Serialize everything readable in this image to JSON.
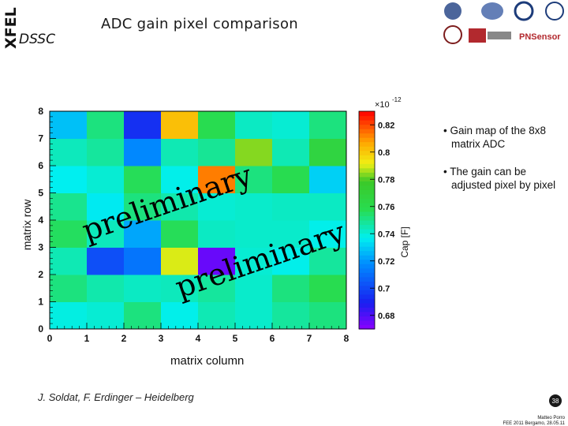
{
  "header": {
    "logo_text": "XFEL",
    "dssc": "DSSC",
    "title": "ADC gain pixel comparison",
    "partner_logo_text": "PNSensor"
  },
  "axis_labels": {
    "y": "matrix row",
    "x": "matrix column",
    "colorbar": "Cap [F]",
    "colorbar_exponent_base": "×10",
    "colorbar_exponent_power": "-12"
  },
  "watermark": "preliminary",
  "bullets": [
    "Gain map of the 8x8 matrix ADC",
    "The gain can be adjusted pixel by pixel"
  ],
  "credit": "J. Soldat, F. Erdinger – Heidelberg",
  "footer": {
    "page_number": "38",
    "line1": "Matteo Porro",
    "line2": "FEE 2011 Bergamo, 28.05.11"
  },
  "chart_data": {
    "type": "heatmap",
    "xlabel": "matrix column",
    "ylabel": "matrix row",
    "xlim": [
      0,
      8
    ],
    "ylim": [
      0,
      8
    ],
    "x_ticks": [
      "0",
      "1",
      "2",
      "3",
      "4",
      "5",
      "6",
      "7",
      "8"
    ],
    "y_ticks": [
      "0",
      "1",
      "2",
      "3",
      "4",
      "5",
      "6",
      "7",
      "8"
    ],
    "colorbar_label": "Cap [F]",
    "colorbar_multiplier": "×10^-12",
    "colorbar_ticks": [
      "0.68",
      "0.7",
      "0.72",
      "0.74",
      "0.76",
      "0.78",
      "0.8",
      "0.82"
    ],
    "colorbar_range": [
      0.67,
      0.83
    ],
    "grid_note": "rows listed bottom (row 0) to top (row 7); values in units of 1e-12 F",
    "values": [
      [
        0.739,
        0.741,
        0.752,
        0.738,
        0.745,
        0.742,
        0.748,
        0.752
      ],
      [
        0.752,
        0.746,
        0.743,
        0.744,
        0.748,
        0.742,
        0.752,
        0.758
      ],
      [
        0.745,
        0.702,
        0.712,
        0.79,
        0.676,
        0.741,
        0.738,
        0.748
      ],
      [
        0.756,
        0.744,
        0.723,
        0.757,
        0.743,
        0.742,
        0.742,
        0.738
      ],
      [
        0.75,
        0.736,
        0.752,
        0.746,
        0.741,
        0.742,
        0.743,
        0.743
      ],
      [
        0.737,
        0.741,
        0.757,
        0.738,
        0.813,
        0.752,
        0.758,
        0.731
      ],
      [
        0.744,
        0.748,
        0.717,
        0.745,
        0.749,
        0.784,
        0.745,
        0.766
      ],
      [
        0.728,
        0.752,
        0.694,
        0.802,
        0.758,
        0.743,
        0.741,
        0.752
      ]
    ]
  },
  "colors": {
    "background": "#ffffff",
    "frame": "#000000",
    "text": "#111111"
  }
}
